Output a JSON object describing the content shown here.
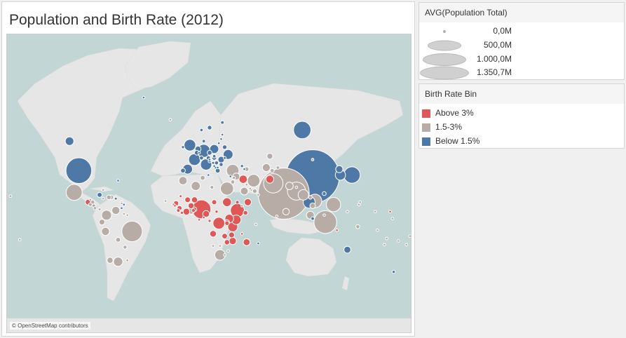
{
  "title": "Population and Birth Rate (2012)",
  "attribution": "© OpenStreetMap contributors",
  "map": {
    "ocean_color": "#c2d6d5",
    "land_color": "#e6e6e6",
    "bubble_colors": {
      "Above 3%": "#e05758",
      "1.5-3%": "#b7aca6",
      "Below 1.5%": "#4e79a7"
    }
  },
  "size_legend": {
    "title": "AVG(Population Total)",
    "items": [
      {
        "label": "0,0M",
        "value": 0.0
      },
      {
        "label": "500,0M",
        "value": 500.0
      },
      {
        "label": "1.000,0M",
        "value": 1000.0
      },
      {
        "label": "1.350,7M",
        "value": 1350.7
      }
    ]
  },
  "color_legend": {
    "title": "Birth Rate Bin",
    "items": [
      {
        "label": "Above 3%",
        "color": "#e05758"
      },
      {
        "label": "1.5-3%",
        "color": "#b7aca6"
      },
      {
        "label": "Below 1.5%",
        "color": "#4e79a7"
      }
    ]
  },
  "bubbles": [
    {
      "lon": 104,
      "lat": 35,
      "pop_m": 1350.7,
      "bin": "Below 1.5%"
    },
    {
      "lon": 79,
      "lat": 22,
      "pop_m": 1236.7,
      "bin": "1.5-3%"
    },
    {
      "lon": -98,
      "lat": 39,
      "pop_m": 313.9,
      "bin": "Below 1.5%"
    },
    {
      "lon": 115,
      "lat": -2,
      "pop_m": 246.9,
      "bin": "1.5-3%"
    },
    {
      "lon": -52,
      "lat": -10,
      "pop_m": 198.7,
      "bin": "1.5-3%"
    },
    {
      "lon": 70,
      "lat": 30,
      "pop_m": 179.2,
      "bin": "1.5-3%"
    },
    {
      "lon": 8,
      "lat": 9,
      "pop_m": 168.8,
      "bin": "Above 3%"
    },
    {
      "lon": 90,
      "lat": 24,
      "pop_m": 154.7,
      "bin": "1.5-3%"
    },
    {
      "lon": 95,
      "lat": 61,
      "pop_m": 143.5,
      "bin": "Below 1.5%"
    },
    {
      "lon": 138,
      "lat": 36,
      "pop_m": 127.6,
      "bin": "Below 1.5%"
    },
    {
      "lon": -102,
      "lat": 23,
      "pop_m": 120.8,
      "bin": "1.5-3%"
    },
    {
      "lon": 122,
      "lat": 13,
      "pop_m": 96.7,
      "bin": "1.5-3%"
    },
    {
      "lon": 106,
      "lat": 16,
      "pop_m": 88.8,
      "bin": "1.5-3%"
    },
    {
      "lon": 39,
      "lat": 8,
      "pop_m": 91.7,
      "bin": "Above 3%"
    },
    {
      "lon": 30,
      "lat": 26,
      "pop_m": 80.7,
      "bin": "1.5-3%"
    },
    {
      "lon": 10,
      "lat": 51,
      "pop_m": 80.4,
      "bin": "Below 1.5%"
    },
    {
      "lon": 35,
      "lat": 39,
      "pop_m": 74.0,
      "bin": "1.5-3%"
    },
    {
      "lon": 53,
      "lat": 32,
      "pop_m": 76.4,
      "bin": "1.5-3%"
    },
    {
      "lon": 23,
      "lat": -3,
      "pop_m": 65.7,
      "bin": "Above 3%"
    },
    {
      "lon": 101,
      "lat": 15,
      "pop_m": 66.8,
      "bin": "Below 1.5%"
    },
    {
      "lon": 2,
      "lat": 46,
      "pop_m": 65.7,
      "bin": "Below 1.5%"
    },
    {
      "lon": -2,
      "lat": 54,
      "pop_m": 63.7,
      "bin": "Below 1.5%"
    },
    {
      "lon": 12,
      "lat": 43,
      "pop_m": 59.5,
      "bin": "Below 1.5%"
    },
    {
      "lon": 24,
      "lat": -29,
      "pop_m": 52.3,
      "bin": "1.5-3%"
    },
    {
      "lon": 96,
      "lat": 21,
      "pop_m": 52.8,
      "bin": "1.5-3%"
    },
    {
      "lon": 35,
      "lat": -6,
      "pop_m": 47.8,
      "bin": "Above 3%"
    },
    {
      "lon": 128,
      "lat": 36,
      "pop_m": 50.0,
      "bin": "Below 1.5%"
    },
    {
      "lon": -74,
      "lat": 4,
      "pop_m": 47.7,
      "bin": "1.5-3%"
    },
    {
      "lon": -4,
      "lat": 40,
      "pop_m": 46.2,
      "bin": "Below 1.5%"
    },
    {
      "lon": 31,
      "lat": 49,
      "pop_m": 45.6,
      "bin": "Below 1.5%"
    },
    {
      "lon": 38,
      "lat": 0,
      "pop_m": 43.2,
      "bin": "Above 3%"
    },
    {
      "lon": -64,
      "lat": -34,
      "pop_m": 41.1,
      "bin": "1.5-3%"
    },
    {
      "lon": 19,
      "lat": 52,
      "pop_m": 38.5,
      "bin": "Below 1.5%"
    },
    {
      "lon": 3,
      "lat": 28,
      "pop_m": 38.5,
      "bin": "1.5-3%"
    },
    {
      "lon": 30,
      "lat": 15,
      "pop_m": 37.2,
      "bin": "Above 3%"
    },
    {
      "lon": -106,
      "lat": 56,
      "pop_m": 34.9,
      "bin": "Below 1.5%"
    },
    {
      "lon": 32,
      "lat": 1,
      "pop_m": 36.3,
      "bin": "Above 3%"
    },
    {
      "lon": 44,
      "lat": 33,
      "pop_m": 32.6,
      "bin": "Above 3%"
    },
    {
      "lon": -8,
      "lat": 32,
      "pop_m": 32.5,
      "bin": "1.5-3%"
    },
    {
      "lon": 67,
      "lat": 33,
      "pop_m": 29.8,
      "bin": "Above 3%"
    },
    {
      "lon": -75,
      "lat": -10,
      "pop_m": 30.0,
      "bin": "1.5-3%"
    },
    {
      "lon": 64,
      "lat": 41,
      "pop_m": 29.8,
      "bin": "1.5-3%"
    },
    {
      "lon": -66,
      "lat": 8,
      "pop_m": 29.9,
      "bin": "1.5-3%"
    },
    {
      "lon": 102,
      "lat": 4,
      "pop_m": 29.2,
      "bin": "1.5-3%"
    },
    {
      "lon": 45,
      "lat": 24,
      "pop_m": 28.3,
      "bin": "1.5-3%"
    },
    {
      "lon": 84,
      "lat": 28,
      "pop_m": 27.5,
      "bin": "1.5-3%"
    },
    {
      "lon": 35,
      "lat": -18,
      "pop_m": 25.2,
      "bin": "Above 3%"
    },
    {
      "lon": -1,
      "lat": 8,
      "pop_m": 25.4,
      "bin": "1.5-3%"
    },
    {
      "lon": 48,
      "lat": 15,
      "pop_m": 23.9,
      "bin": "Above 3%"
    },
    {
      "lon": 127,
      "lat": 40,
      "pop_m": 24.8,
      "bin": "Below 1.5%"
    },
    {
      "lon": 134,
      "lat": -25,
      "pop_m": 22.7,
      "bin": "Below 1.5%"
    },
    {
      "lon": 47,
      "lat": -19,
      "pop_m": 22.3,
      "bin": "Above 3%"
    },
    {
      "lon": -5,
      "lat": 7,
      "pop_m": 22.0,
      "bin": "Above 3%"
    },
    {
      "lon": 12,
      "lat": 5,
      "pop_m": 21.7,
      "bin": "Above 3%"
    },
    {
      "lon": 18,
      "lat": -12,
      "pop_m": 20.8,
      "bin": "Above 3%"
    },
    {
      "lon": 81,
      "lat": 7,
      "pop_m": 20.3,
      "bin": "1.5-3%"
    },
    {
      "lon": 25,
      "lat": 46,
      "pop_m": 20.1,
      "bin": "Below 1.5%"
    },
    {
      "lon": 2,
      "lat": 17,
      "pop_m": 16.9,
      "bin": "Above 3%"
    },
    {
      "lon": -1,
      "lat": 12,
      "pop_m": 16.5,
      "bin": "Above 3%"
    },
    {
      "lon": -4,
      "lat": 17,
      "pop_m": 14.9,
      "bin": "Above 3%"
    },
    {
      "lon": 67,
      "lat": 48,
      "pop_m": 16.8,
      "bin": "1.5-3%"
    },
    {
      "lon": -71,
      "lat": -33,
      "pop_m": 17.5,
      "bin": "1.5-3%"
    },
    {
      "lon": 5,
      "lat": 52,
      "pop_m": 16.8,
      "bin": "Below 1.5%"
    },
    {
      "lon": 34,
      "lat": -13,
      "pop_m": 15.9,
      "bin": "Above 3%"
    },
    {
      "lon": 28,
      "lat": -14,
      "pop_m": 14.1,
      "bin": "Above 3%"
    },
    {
      "lon": -90,
      "lat": 15,
      "pop_m": 15.1,
      "bin": "Above 3%"
    },
    {
      "lon": -78,
      "lat": -2,
      "pop_m": 15.5,
      "bin": "1.5-3%"
    },
    {
      "lon": 30,
      "lat": -19,
      "pop_m": 13.7,
      "bin": "Above 3%"
    },
    {
      "lon": 19,
      "lat": 15,
      "pop_m": 12.4,
      "bin": "Above 3%"
    },
    {
      "lon": -14,
      "lat": 14,
      "pop_m": 13.7,
      "bin": "Above 3%"
    },
    {
      "lon": 104,
      "lat": 12,
      "pop_m": 14.9,
      "bin": "1.5-3%"
    },
    {
      "lon": 38,
      "lat": 35,
      "pop_m": 22.4,
      "bin": "1.5-3%"
    },
    {
      "lon": -11,
      "lat": 10,
      "pop_m": 11.5,
      "bin": "Above 3%"
    },
    {
      "lon": 30,
      "lat": -2,
      "pop_m": 11.5,
      "bin": "Above 3%"
    },
    {
      "lon": 46,
      "lat": 6,
      "pop_m": 10.2,
      "bin": "Above 3%"
    },
    {
      "lon": -80,
      "lat": 21,
      "pop_m": 11.3,
      "bin": "Below 1.5%"
    },
    {
      "lon": 9,
      "lat": 34,
      "pop_m": 10.8,
      "bin": "1.5-3%"
    },
    {
      "lon": -64,
      "lat": -17,
      "pop_m": 10.5,
      "bin": "1.5-3%"
    },
    {
      "lon": 4,
      "lat": 50,
      "pop_m": 11.1,
      "bin": "Below 1.5%"
    },
    {
      "lon": 22,
      "lat": 39,
      "pop_m": 11.1,
      "bin": "Below 1.5%"
    },
    {
      "lon": 15,
      "lat": 50,
      "pop_m": 10.5,
      "bin": "Below 1.5%"
    },
    {
      "lon": -8,
      "lat": 39,
      "pop_m": 10.5,
      "bin": "Below 1.5%"
    },
    {
      "lon": -72,
      "lat": 19,
      "pop_m": 10.2,
      "bin": "1.5-3%"
    },
    {
      "lon": 2,
      "lat": 9,
      "pop_m": 10.1,
      "bin": "Above 3%"
    },
    {
      "lon": 30,
      "lat": -3,
      "pop_m": 9.8,
      "bin": "Above 3%"
    },
    {
      "lon": 15,
      "lat": 62,
      "pop_m": 9.5,
      "bin": "Below 1.5%"
    },
    {
      "lon": 19,
      "lat": 47,
      "pop_m": 9.9,
      "bin": "Below 1.5%"
    },
    {
      "lon": 28,
      "lat": 53,
      "pop_m": 9.5,
      "bin": "Below 1.5%"
    },
    {
      "lon": 47,
      "lat": 40,
      "pop_m": 9.3,
      "bin": "1.5-3%"
    },
    {
      "lon": 54,
      "lat": 24,
      "pop_m": 9.2,
      "bin": "1.5-3%"
    },
    {
      "lon": -70,
      "lat": 19,
      "pop_m": 10.3,
      "bin": "1.5-3%"
    },
    {
      "lon": -86,
      "lat": 15,
      "pop_m": 7.9,
      "bin": "1.5-3%"
    },
    {
      "lon": 14,
      "lat": 47,
      "pop_m": 8.4,
      "bin": "Below 1.5%"
    },
    {
      "lon": 8,
      "lat": 47,
      "pop_m": 8.0,
      "bin": "Below 1.5%"
    },
    {
      "lon": 35,
      "lat": 31,
      "pop_m": 7.9,
      "bin": "1.5-3%"
    },
    {
      "lon": 114,
      "lat": 22,
      "pop_m": 7.2,
      "bin": "Below 1.5%"
    },
    {
      "lon": 21,
      "lat": 44,
      "pop_m": 7.2,
      "bin": "Below 1.5%"
    },
    {
      "lon": 25,
      "lat": 43,
      "pop_m": 7.3,
      "bin": "Below 1.5%"
    },
    {
      "lon": 69,
      "lat": 39,
      "pop_m": 8.0,
      "bin": "1.5-3%"
    },
    {
      "lon": 17,
      "lat": 27,
      "pop_m": 6.2,
      "bin": "1.5-3%"
    },
    {
      "lon": -58,
      "lat": -23,
      "pop_m": 6.7,
      "bin": "1.5-3%"
    },
    {
      "lon": 1,
      "lat": 8,
      "pop_m": 6.6,
      "bin": "Above 3%"
    },
    {
      "lon": -12,
      "lat": 8,
      "pop_m": 6.0,
      "bin": "Above 3%"
    },
    {
      "lon": 102,
      "lat": 19,
      "pop_m": 6.6,
      "bin": "1.5-3%"
    },
    {
      "lon": -88,
      "lat": 13,
      "pop_m": 6.3,
      "bin": "1.5-3%"
    },
    {
      "lon": -85,
      "lat": 12,
      "pop_m": 6.0,
      "bin": "1.5-3%"
    },
    {
      "lon": 74,
      "lat": 41,
      "pop_m": 5.6,
      "bin": "1.5-3%"
    },
    {
      "lon": 10,
      "lat": 56,
      "pop_m": 5.6,
      "bin": "Below 1.5%"
    },
    {
      "lon": 26,
      "lat": 64,
      "pop_m": 5.4,
      "bin": "Below 1.5%"
    },
    {
      "lon": 19,
      "lat": 48,
      "pop_m": 5.4,
      "bin": "Below 1.5%"
    },
    {
      "lon": 8,
      "lat": 61,
      "pop_m": 5.0,
      "bin": "Below 1.5%"
    },
    {
      "lon": 104,
      "lat": 1,
      "pop_m": 5.3,
      "bin": "Below 1.5%"
    },
    {
      "lon": 15,
      "lat": -1,
      "pop_m": 4.3,
      "bin": "Above 3%"
    },
    {
      "lon": 21,
      "lat": 7,
      "pop_m": 4.5,
      "bin": "Above 3%"
    },
    {
      "lon": -84,
      "lat": 10,
      "pop_m": 4.8,
      "bin": "1.5-3%"
    },
    {
      "lon": 36,
      "lat": 34,
      "pop_m": 4.4,
      "bin": "1.5-3%"
    },
    {
      "lon": -9,
      "lat": 6,
      "pop_m": 4.2,
      "bin": "Above 3%"
    },
    {
      "lon": 174,
      "lat": -41,
      "pop_m": 4.4,
      "bin": "Below 1.5%"
    },
    {
      "lon": -8,
      "lat": 53,
      "pop_m": 4.6,
      "bin": "Below 1.5%"
    },
    {
      "lon": 15,
      "lat": 45,
      "pop_m": 4.3,
      "bin": "Below 1.5%"
    },
    {
      "lon": 43,
      "lat": 42,
      "pop_m": 4.5,
      "bin": "Below 1.5%"
    },
    {
      "lon": -80,
      "lat": 9,
      "pop_m": 3.8,
      "bin": "1.5-3%"
    },
    {
      "lon": -10,
      "lat": 20,
      "pop_m": 3.8,
      "bin": "Above 3%"
    },
    {
      "lon": 57,
      "lat": 21,
      "pop_m": 3.3,
      "bin": "1.5-3%"
    },
    {
      "lon": 39,
      "lat": 15,
      "pop_m": 6.1,
      "bin": "Above 3%"
    },
    {
      "lon": 47,
      "lat": 29,
      "pop_m": 3.3,
      "bin": "1.5-3%"
    },
    {
      "lon": -56,
      "lat": -33,
      "pop_m": 3.4,
      "bin": "1.5-3%"
    },
    {
      "lon": 104,
      "lat": 46,
      "pop_m": 2.8,
      "bin": "1.5-3%"
    },
    {
      "lon": 23,
      "lat": 55,
      "pop_m": 3.0,
      "bin": "Below 1.5%"
    },
    {
      "lon": 20,
      "lat": 41,
      "pop_m": 3.2,
      "bin": "Below 1.5%"
    },
    {
      "lon": 45,
      "lat": 40,
      "pop_m": 3.0,
      "bin": "Below 1.5%"
    },
    {
      "lon": 18,
      "lat": 44,
      "pop_m": 3.8,
      "bin": "Below 1.5%"
    },
    {
      "lon": 28,
      "lat": 47,
      "pop_m": 3.6,
      "bin": "Below 1.5%"
    },
    {
      "lon": 18,
      "lat": -22,
      "pop_m": 2.3,
      "bin": "1.5-3%"
    },
    {
      "lon": 24,
      "lat": -22,
      "pop_m": 2.0,
      "bin": "1.5-3%"
    },
    {
      "lon": 28,
      "lat": -29,
      "pop_m": 2.1,
      "bin": "1.5-3%"
    },
    {
      "lon": 25,
      "lat": 57,
      "pop_m": 2.0,
      "bin": "Below 1.5%"
    },
    {
      "lon": 15,
      "lat": 46,
      "pop_m": 2.1,
      "bin": "Below 1.5%"
    },
    {
      "lon": 22,
      "lat": 41,
      "pop_m": 2.1,
      "bin": "Below 1.5%"
    },
    {
      "lon": -77,
      "lat": 18,
      "pop_m": 2.7,
      "bin": "1.5-3%"
    },
    {
      "lon": 143,
      "lat": -6,
      "pop_m": 7.2,
      "bin": "1.5-3%"
    },
    {
      "lon": 125,
      "lat": -9,
      "pop_m": 1.2,
      "bin": "Above 3%"
    },
    {
      "lon": 26,
      "lat": 59,
      "pop_m": 1.3,
      "bin": "Below 1.5%"
    },
    {
      "lon": -61,
      "lat": 10,
      "pop_m": 1.3,
      "bin": "Below 1.5%"
    },
    {
      "lon": 57,
      "lat": -20,
      "pop_m": 1.3,
      "bin": "Below 1.5%"
    },
    {
      "lon": 31,
      "lat": -26,
      "pop_m": 1.2,
      "bin": "1.5-3%"
    },
    {
      "lon": 10,
      "lat": 2,
      "pop_m": 0.7,
      "bin": "Above 3%"
    },
    {
      "lon": -15,
      "lat": 12,
      "pop_m": 1.7,
      "bin": "Above 3%"
    },
    {
      "lon": -16,
      "lat": 13,
      "pop_m": 1.8,
      "bin": "Above 3%"
    },
    {
      "lon": 43,
      "lat": 12,
      "pop_m": 0.9,
      "bin": "1.5-3%"
    },
    {
      "lon": 51,
      "lat": 25,
      "pop_m": 2.1,
      "bin": "1.5-3%"
    },
    {
      "lon": 50,
      "lat": 26,
      "pop_m": 1.3,
      "bin": "1.5-3%"
    },
    {
      "lon": 33,
      "lat": 35,
      "pop_m": 1.1,
      "bin": "Below 1.5%"
    },
    {
      "lon": 178,
      "lat": -18,
      "pop_m": 0.9,
      "bin": "1.5-3%"
    },
    {
      "lon": 160,
      "lat": -9,
      "pop_m": 0.5,
      "bin": "1.5-3%"
    },
    {
      "lon": 166,
      "lat": -21,
      "pop_m": 0.26,
      "bin": "1.5-3%"
    },
    {
      "lon": 168,
      "lat": -16,
      "pop_m": 0.25,
      "bin": "1.5-3%"
    },
    {
      "lon": -172,
      "lat": -14,
      "pop_m": 0.19,
      "bin": "1.5-3%"
    },
    {
      "lon": -175,
      "lat": -21,
      "pop_m": 0.1,
      "bin": "1.5-3%"
    },
    {
      "lon": 173,
      "lat": 1,
      "pop_m": 0.1,
      "bin": "1.5-3%"
    },
    {
      "lon": 171,
      "lat": 7,
      "pop_m": 0.05,
      "bin": "Above 3%"
    },
    {
      "lon": 158,
      "lat": 7,
      "pop_m": 0.1,
      "bin": "1.5-3%"
    },
    {
      "lon": 134,
      "lat": 7,
      "pop_m": 0.02,
      "bin": "1.5-3%"
    },
    {
      "lon": 145,
      "lat": 15,
      "pop_m": 0.05,
      "bin": "1.5-3%"
    },
    {
      "lon": 144,
      "lat": 13,
      "pop_m": 0.16,
      "bin": "1.5-3%"
    },
    {
      "lon": -149,
      "lat": -17,
      "pop_m": 0.27,
      "bin": "1.5-3%"
    },
    {
      "lon": -157,
      "lat": 20,
      "pop_m": 0.1,
      "bin": "1.5-3%"
    },
    {
      "lon": -23,
      "lat": 16,
      "pop_m": 0.5,
      "bin": "1.5-3%"
    },
    {
      "lon": -19,
      "lat": 65,
      "pop_m": 0.3,
      "bin": "1.5-3%"
    },
    {
      "lon": -42,
      "lat": 72,
      "pop_m": 0.06,
      "bin": "Below 1.5%"
    },
    {
      "lon": 73,
      "lat": 3,
      "pop_m": 0.34,
      "bin": "1.5-3%"
    },
    {
      "lon": 55,
      "lat": -4,
      "pop_m": 0.09,
      "bin": "1.5-3%"
    },
    {
      "lon": 43,
      "lat": -12,
      "pop_m": 0.72,
      "bin": "Above 3%"
    },
    {
      "lon": 6,
      "lat": 0,
      "pop_m": 0.19,
      "bin": "Above 3%"
    },
    {
      "lon": -59,
      "lat": 5,
      "pop_m": 0.8,
      "bin": "1.5-3%"
    },
    {
      "lon": -56,
      "lat": 4,
      "pop_m": 0.53,
      "bin": "1.5-3%"
    },
    {
      "lon": -88,
      "lat": 17,
      "pop_m": 0.32,
      "bin": "1.5-3%"
    },
    {
      "lon": -77,
      "lat": 25,
      "pop_m": 0.37,
      "bin": "1.5-3%"
    },
    {
      "lon": -61,
      "lat": 14,
      "pop_m": 0.18,
      "bin": "1.5-3%"
    },
    {
      "lon": -59,
      "lat": 13,
      "pop_m": 0.28,
      "bin": "Below 1.5%"
    },
    {
      "lon": -66,
      "lat": 18,
      "pop_m": 3.6,
      "bin": "Below 1.5%"
    },
    {
      "lon": -61,
      "lat": 15,
      "pop_m": 0.4,
      "bin": "1.5-3%"
    },
    {
      "lon": -64,
      "lat": 32,
      "pop_m": 0.06,
      "bin": "Below 1.5%"
    },
    {
      "lon": 114,
      "lat": 4,
      "pop_m": 0.4,
      "bin": "1.5-3%"
    },
    {
      "lon": 90,
      "lat": 27,
      "pop_m": 0.74,
      "bin": "1.5-3%"
    },
    {
      "lon": 14,
      "lat": 36,
      "pop_m": 0.42,
      "bin": "Below 1.5%"
    },
    {
      "lon": 6,
      "lat": 50,
      "pop_m": 0.53,
      "bin": "Below 1.5%"
    },
    {
      "lon": 19,
      "lat": 42,
      "pop_m": 0.62,
      "bin": "Below 1.5%"
    }
  ]
}
